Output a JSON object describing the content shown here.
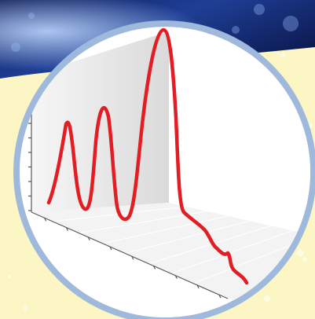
{
  "colors": {
    "banner_dark": "#0c1a52",
    "banner_mid": "#1f3f96",
    "banner_light": "#5c8be0",
    "cream_background": "#fbf6c4",
    "circle_rim": "#9fb9dc",
    "floor": "#f3f3f3",
    "back_wall": "#e8e8e8",
    "axis_ticks": "#5a5a5a",
    "trace": "#e21d24"
  },
  "trace": {
    "shape": "spectrum with three rising peaks, then a falling tail",
    "peaks": 3,
    "y_ticks": 9,
    "x_ticks": 9
  }
}
